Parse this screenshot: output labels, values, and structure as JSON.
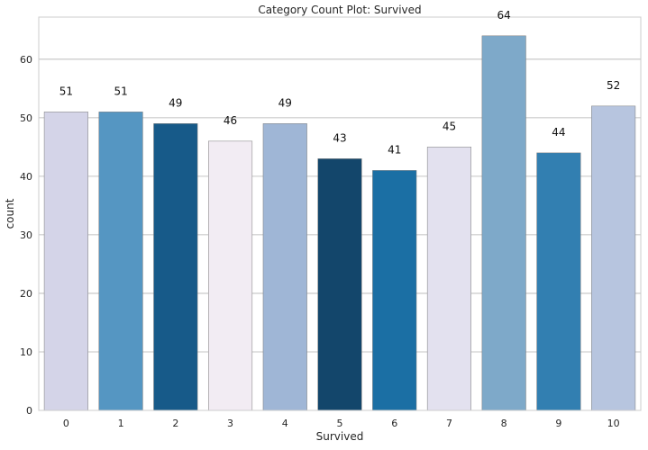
{
  "chart_data": {
    "type": "bar",
    "title": "Category Count Plot: Survived",
    "xlabel": "Survived",
    "ylabel": "count",
    "categories": [
      "0",
      "1",
      "2",
      "3",
      "4",
      "5",
      "6",
      "7",
      "8",
      "9",
      "10"
    ],
    "values": [
      51,
      51,
      49,
      46,
      49,
      43,
      41,
      45,
      64,
      44,
      52
    ],
    "data_labels": [
      "51",
      "51",
      "49",
      "46",
      "49",
      "43",
      "41",
      "45",
      "64",
      "44",
      "52"
    ],
    "ylim": [
      0,
      67.2
    ],
    "yticks": [
      0,
      10,
      20,
      30,
      40,
      50,
      60
    ],
    "ytick_labels": [
      "0",
      "10",
      "20",
      "30",
      "40",
      "50",
      "60"
    ],
    "grid": "horizontal",
    "bar_colors": [
      "#d4d4e8",
      "#5596c2",
      "#175a89",
      "#f2ecf3",
      "#9fb6d6",
      "#13466b",
      "#1b6fa4",
      "#e3e1ef",
      "#7ea9c9",
      "#327fb1",
      "#b7c5df"
    ]
  }
}
